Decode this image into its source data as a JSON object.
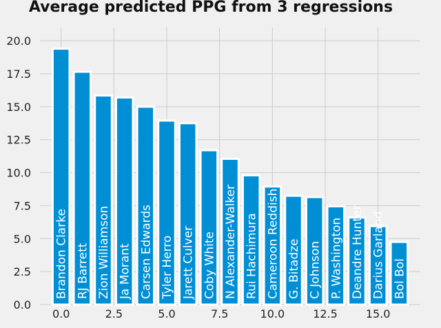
{
  "chart_data": {
    "type": "bar",
    "title": "Average predicted PPG from 3 regressions",
    "xlabel": "",
    "ylabel": "",
    "x": [
      0,
      1,
      2,
      3,
      4,
      5,
      6,
      7,
      8,
      9,
      10,
      11,
      12,
      13,
      14,
      15,
      16
    ],
    "values": [
      19.4,
      17.65,
      15.85,
      15.7,
      15.0,
      13.95,
      13.75,
      11.7,
      11.05,
      9.8,
      8.95,
      8.25,
      8.15,
      7.45,
      6.6,
      5.95,
      4.75
    ],
    "labels": [
      "Brandon Clarke",
      "RJ Barrett",
      "Zion Williamson",
      "Ja Morant",
      "Carsen Edwards",
      "Tyler Herro",
      "Jarett Culver",
      "Coby White",
      "N Alexander-Walker",
      "Rui Hachimura",
      "Cameroon Reddish",
      "G. Bitadze",
      "C Johnson",
      "P. Washington",
      "Deandre Hunter",
      "Darius Garland",
      "Bol Bol"
    ],
    "xlim": [
      -1.0,
      17.0
    ],
    "ylim": [
      0,
      21
    ],
    "xticks": [
      0.0,
      2.5,
      5.0,
      7.5,
      10.0,
      12.5,
      15.0
    ],
    "xtick_labels": [
      "0.0",
      "2.5",
      "5.0",
      "7.5",
      "10.0",
      "12.5",
      "15.0"
    ],
    "yticks": [
      0.0,
      2.5,
      5.0,
      7.5,
      10.0,
      12.5,
      15.0,
      17.5,
      20.0
    ],
    "ytick_labels": [
      "0.0",
      "2.5",
      "5.0",
      "7.5",
      "10.0",
      "12.5",
      "15.0",
      "17.5",
      "20.0"
    ],
    "grid": true,
    "colors": {
      "bar": "#008fd5",
      "edge": "#ffffff",
      "background": "#f0f0f0",
      "grid": "#cbcbcb"
    }
  }
}
